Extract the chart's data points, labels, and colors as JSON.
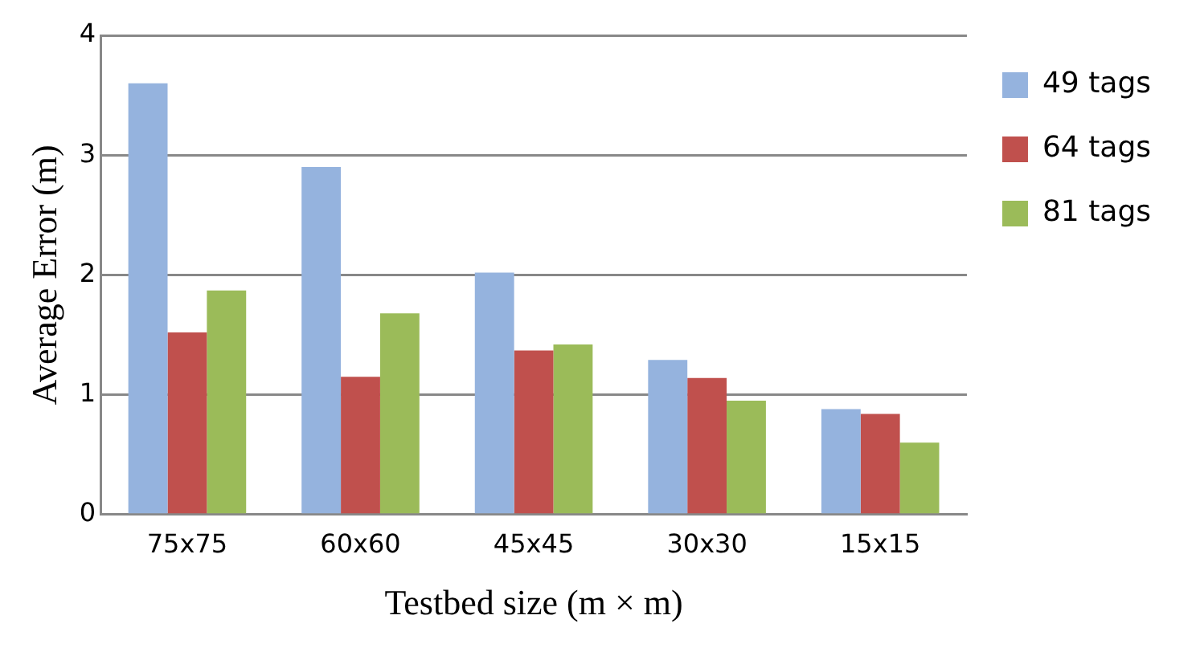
{
  "chart_data": {
    "type": "bar",
    "xlabel": "Testbed size (m × m)",
    "ylabel": "Average Error (m)",
    "categories": [
      "75x75",
      "60x60",
      "45x45",
      "30x30",
      "15x15"
    ],
    "series": [
      {
        "name": "49 tags",
        "color": "#95b3de",
        "values": [
          3.6,
          2.9,
          2.02,
          1.29,
          0.88
        ]
      },
      {
        "name": "64 tags",
        "color": "#c0504d",
        "values": [
          1.52,
          1.15,
          1.37,
          1.14,
          0.84
        ]
      },
      {
        "name": "81 tags",
        "color": "#9bbb59",
        "values": [
          1.87,
          1.68,
          1.42,
          0.95,
          0.6
        ]
      }
    ],
    "ylim": [
      0,
      4
    ],
    "yticks": [
      0,
      1,
      2,
      3,
      4
    ],
    "grid": "y",
    "legend": "right"
  }
}
